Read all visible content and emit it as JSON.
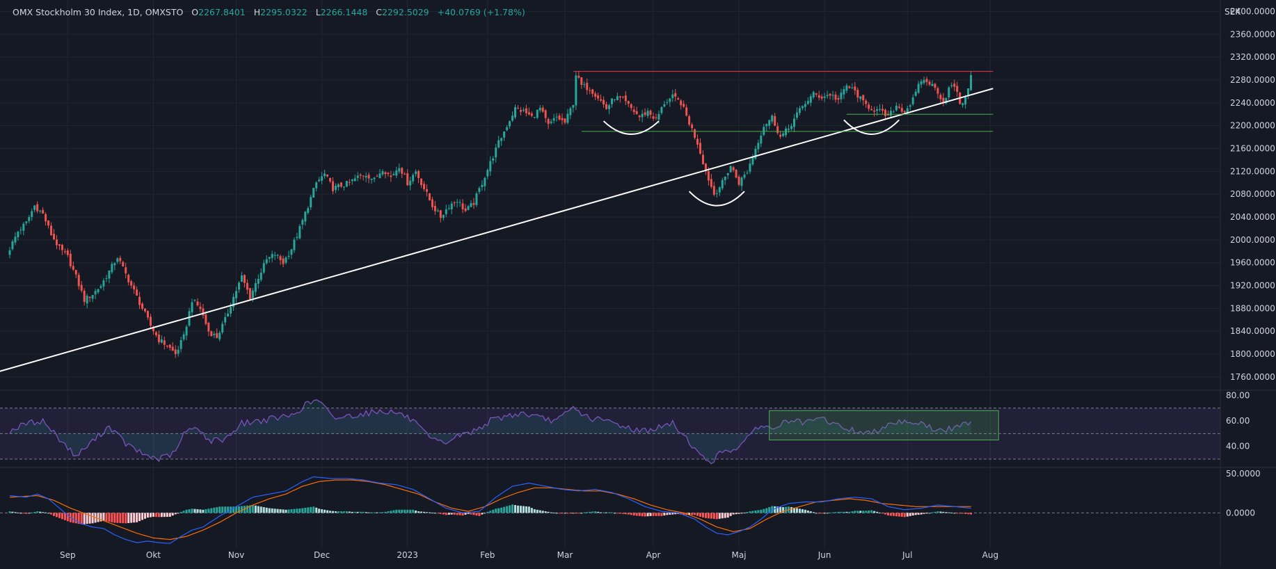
{
  "header": {
    "symbol": "OMX Stockholm 30 Index, 1D, OMXSTO",
    "open_label": "O",
    "open": "2267.8401",
    "high_label": "H",
    "high": "2295.0322",
    "low_label": "L",
    "low": "2266.1448",
    "close_label": "C",
    "close": "2292.5029",
    "change": "+40.0769 (+1.78%)",
    "currency": "SEK"
  },
  "colors": {
    "background": "#151924",
    "up_candle": "#26a69a",
    "down_candle": "#ef5350",
    "grid": "#222632",
    "trendline": "#ffffff",
    "resistance_line": "#f23645",
    "support_line": "#4caf50",
    "rsi_line": "#7e57c2",
    "macd_line": "#2962ff",
    "signal_line": "#ff6d00"
  },
  "chart_data": [
    {
      "type": "candlestick",
      "x_labels": [
        "Sep",
        "Okt",
        "Nov",
        "Dec",
        "2023",
        "Feb",
        "Mar",
        "Apr",
        "Maj",
        "Jun",
        "Jul",
        "Aug"
      ],
      "y_ticks": [
        "2400.0000",
        "2360.0000",
        "2320.0000",
        "2280.0000",
        "2240.0000",
        "2200.0000",
        "2160.0000",
        "2120.0000",
        "2080.0000",
        "2040.0000",
        "2000.0000",
        "1960.0000",
        "1920.0000",
        "1880.0000",
        "1840.0000",
        "1800.0000",
        "1760.0000"
      ],
      "ylim": [
        1738,
        2420
      ],
      "close_path": [
        [
          0,
          1985
        ],
        [
          3,
          2015
        ],
        [
          6,
          2030
        ],
        [
          9,
          2060
        ],
        [
          12,
          2045
        ],
        [
          15,
          2010
        ],
        [
          18,
          1985
        ],
        [
          21,
          1970
        ],
        [
          24,
          1935
        ],
        [
          27,
          1895
        ],
        [
          30,
          1905
        ],
        [
          33,
          1920
        ],
        [
          36,
          1945
        ],
        [
          39,
          1970
        ],
        [
          42,
          1940
        ],
        [
          45,
          1910
        ],
        [
          48,
          1880
        ],
        [
          51,
          1850
        ],
        [
          54,
          1825
        ],
        [
          57,
          1815
        ],
        [
          60,
          1800
        ],
        [
          63,
          1830
        ],
        [
          66,
          1895
        ],
        [
          69,
          1880
        ],
        [
          72,
          1840
        ],
        [
          75,
          1830
        ],
        [
          78,
          1860
        ],
        [
          81,
          1900
        ],
        [
          84,
          1935
        ],
        [
          87,
          1900
        ],
        [
          90,
          1935
        ],
        [
          93,
          1965
        ],
        [
          96,
          1975
        ],
        [
          99,
          1960
        ],
        [
          102,
          1985
        ],
        [
          105,
          2020
        ],
        [
          108,
          2060
        ],
        [
          111,
          2100
        ],
        [
          114,
          2115
        ],
        [
          117,
          2090
        ],
        [
          120,
          2095
        ],
        [
          123,
          2100
        ],
        [
          126,
          2110
        ],
        [
          129,
          2115
        ],
        [
          132,
          2105
        ],
        [
          135,
          2125
        ],
        [
          138,
          2110
        ],
        [
          141,
          2130
        ],
        [
          144,
          2100
        ],
        [
          147,
          2120
        ],
        [
          150,
          2090
        ],
        [
          153,
          2060
        ],
        [
          156,
          2040
        ],
        [
          159,
          2060
        ],
        [
          162,
          2070
        ],
        [
          165,
          2050
        ],
        [
          168,
          2065
        ],
        [
          171,
          2100
        ],
        [
          174,
          2135
        ],
        [
          177,
          2170
        ],
        [
          180,
          2200
        ],
        [
          183,
          2230
        ],
        [
          186,
          2225
        ],
        [
          189,
          2215
        ],
        [
          192,
          2230
        ],
        [
          195,
          2200
        ],
        [
          198,
          2215
        ],
        [
          201,
          2205
        ],
        [
          204,
          2240
        ],
        [
          205,
          2290
        ],
        [
          207,
          2270
        ],
        [
          210,
          2265
        ],
        [
          213,
          2250
        ],
        [
          216,
          2230
        ],
        [
          219,
          2250
        ],
        [
          222,
          2245
        ],
        [
          225,
          2230
        ],
        [
          228,
          2215
        ],
        [
          231,
          2225
        ],
        [
          234,
          2210
        ],
        [
          237,
          2240
        ],
        [
          240,
          2250
        ],
        [
          243,
          2240
        ],
        [
          246,
          2205
        ],
        [
          249,
          2170
        ],
        [
          252,
          2120
        ],
        [
          255,
          2080
        ],
        [
          258,
          2100
        ],
        [
          261,
          2130
        ],
        [
          264,
          2100
        ],
        [
          267,
          2120
        ],
        [
          270,
          2160
        ],
        [
          273,
          2200
        ],
        [
          276,
          2215
        ],
        [
          279,
          2180
        ],
        [
          282,
          2195
        ],
        [
          285,
          2220
        ],
        [
          288,
          2240
        ],
        [
          291,
          2255
        ],
        [
          294,
          2250
        ],
        [
          297,
          2255
        ],
        [
          300,
          2245
        ],
        [
          303,
          2270
        ],
        [
          306,
          2260
        ],
        [
          309,
          2240
        ],
        [
          312,
          2230
        ],
        [
          315,
          2225
        ],
        [
          318,
          2215
        ],
        [
          321,
          2235
        ],
        [
          324,
          2225
        ],
        [
          327,
          2245
        ],
        [
          330,
          2280
        ],
        [
          333,
          2275
        ],
        [
          336,
          2260
        ],
        [
          338,
          2240
        ],
        [
          340,
          2265
        ],
        [
          342,
          2270
        ],
        [
          344,
          2240
        ],
        [
          346,
          2245
        ],
        [
          348,
          2292
        ]
      ],
      "trendline": {
        "start": [
          -5,
          1768
        ],
        "end": [
          356,
          2265
        ]
      },
      "resistance": {
        "value": 2295,
        "from": 204,
        "to": 356
      },
      "support": [
        {
          "value": 2220,
          "from": 303,
          "to": 356
        },
        {
          "value": 2190,
          "from": 207,
          "to": 356
        }
      ],
      "arcs": [
        {
          "center": 225,
          "top": 2208,
          "bottom": 2185,
          "half_width": 10
        },
        {
          "center": 256,
          "top": 2085,
          "bottom": 2060,
          "half_width": 10
        },
        {
          "center": 312,
          "top": 2210,
          "bottom": 2185,
          "half_width": 10
        }
      ]
    },
    {
      "type": "line",
      "name": "",
      "y_ticks": [
        "80.00",
        "60.00",
        "40.00"
      ],
      "ylim": [
        24,
        84
      ],
      "levels": [
        70,
        50,
        30
      ],
      "values_path": [
        [
          0,
          52
        ],
        [
          6,
          58
        ],
        [
          12,
          60
        ],
        [
          18,
          46
        ],
        [
          24,
          32
        ],
        [
          30,
          44
        ],
        [
          36,
          56
        ],
        [
          42,
          42
        ],
        [
          48,
          34
        ],
        [
          54,
          30
        ],
        [
          60,
          35
        ],
        [
          63,
          50
        ],
        [
          68,
          56
        ],
        [
          72,
          44
        ],
        [
          78,
          46
        ],
        [
          84,
          58
        ],
        [
          90,
          60
        ],
        [
          96,
          62
        ],
        [
          102,
          64
        ],
        [
          108,
          74
        ],
        [
          112,
          76
        ],
        [
          117,
          62
        ],
        [
          123,
          64
        ],
        [
          129,
          66
        ],
        [
          135,
          68
        ],
        [
          141,
          66
        ],
        [
          146,
          60
        ],
        [
          152,
          46
        ],
        [
          157,
          42
        ],
        [
          162,
          48
        ],
        [
          168,
          52
        ],
        [
          174,
          60
        ],
        [
          180,
          64
        ],
        [
          186,
          66
        ],
        [
          192,
          62
        ],
        [
          198,
          60
        ],
        [
          204,
          70
        ],
        [
          210,
          62
        ],
        [
          216,
          60
        ],
        [
          222,
          56
        ],
        [
          228,
          52
        ],
        [
          234,
          54
        ],
        [
          240,
          58
        ],
        [
          246,
          44
        ],
        [
          250,
          32
        ],
        [
          254,
          28
        ],
        [
          258,
          36
        ],
        [
          262,
          38
        ],
        [
          266,
          42
        ],
        [
          270,
          56
        ],
        [
          276,
          54
        ],
        [
          282,
          60
        ],
        [
          288,
          58
        ],
        [
          294,
          62
        ],
        [
          300,
          56
        ],
        [
          306,
          52
        ],
        [
          312,
          50
        ],
        [
          318,
          58
        ],
        [
          324,
          60
        ],
        [
          330,
          58
        ],
        [
          336,
          52
        ],
        [
          342,
          54
        ],
        [
          348,
          60
        ]
      ],
      "highlight_box": {
        "from": 275,
        "to": 358,
        "top": 68,
        "bottom": 45
      }
    },
    {
      "type": "bar",
      "y_ticks": [
        "50.0000",
        "0.0000"
      ],
      "ylim": [
        -45,
        58
      ],
      "macd_path": [
        [
          0,
          22
        ],
        [
          6,
          20
        ],
        [
          10,
          24
        ],
        [
          14,
          18
        ],
        [
          18,
          6
        ],
        [
          22,
          -6
        ],
        [
          26,
          -14
        ],
        [
          30,
          -18
        ],
        [
          34,
          -20
        ],
        [
          38,
          -28
        ],
        [
          42,
          -34
        ],
        [
          46,
          -38
        ],
        [
          50,
          -36
        ],
        [
          54,
          -38
        ],
        [
          58,
          -39
        ],
        [
          62,
          -30
        ],
        [
          66,
          -22
        ],
        [
          70,
          -18
        ],
        [
          76,
          -4
        ],
        [
          82,
          8
        ],
        [
          88,
          20
        ],
        [
          94,
          24
        ],
        [
          100,
          28
        ],
        [
          106,
          40
        ],
        [
          110,
          46
        ],
        [
          116,
          44
        ],
        [
          122,
          44
        ],
        [
          128,
          42
        ],
        [
          134,
          38
        ],
        [
          140,
          36
        ],
        [
          146,
          30
        ],
        [
          152,
          18
        ],
        [
          158,
          6
        ],
        [
          164,
          0
        ],
        [
          170,
          2
        ],
        [
          176,
          20
        ],
        [
          182,
          34
        ],
        [
          188,
          38
        ],
        [
          194,
          34
        ],
        [
          200,
          30
        ],
        [
          206,
          28
        ],
        [
          212,
          30
        ],
        [
          218,
          26
        ],
        [
          224,
          18
        ],
        [
          230,
          8
        ],
        [
          236,
          2
        ],
        [
          242,
          0
        ],
        [
          248,
          -8
        ],
        [
          252,
          -18
        ],
        [
          256,
          -26
        ],
        [
          260,
          -28
        ],
        [
          264,
          -24
        ],
        [
          268,
          -18
        ],
        [
          272,
          -8
        ],
        [
          276,
          4
        ],
        [
          282,
          12
        ],
        [
          288,
          14
        ],
        [
          294,
          14
        ],
        [
          300,
          18
        ],
        [
          306,
          20
        ],
        [
          312,
          18
        ],
        [
          318,
          8
        ],
        [
          324,
          4
        ],
        [
          330,
          6
        ],
        [
          336,
          10
        ],
        [
          342,
          8
        ],
        [
          348,
          6
        ]
      ],
      "signal_path": [
        [
          0,
          20
        ],
        [
          10,
          22
        ],
        [
          16,
          16
        ],
        [
          22,
          6
        ],
        [
          28,
          -2
        ],
        [
          34,
          -10
        ],
        [
          40,
          -18
        ],
        [
          46,
          -26
        ],
        [
          52,
          -32
        ],
        [
          58,
          -34
        ],
        [
          64,
          -30
        ],
        [
          70,
          -22
        ],
        [
          76,
          -12
        ],
        [
          82,
          0
        ],
        [
          88,
          10
        ],
        [
          94,
          18
        ],
        [
          100,
          24
        ],
        [
          106,
          34
        ],
        [
          112,
          40
        ],
        [
          118,
          42
        ],
        [
          124,
          42
        ],
        [
          130,
          40
        ],
        [
          136,
          36
        ],
        [
          142,
          30
        ],
        [
          148,
          24
        ],
        [
          154,
          14
        ],
        [
          160,
          6
        ],
        [
          166,
          2
        ],
        [
          172,
          8
        ],
        [
          178,
          18
        ],
        [
          184,
          26
        ],
        [
          190,
          32
        ],
        [
          196,
          32
        ],
        [
          202,
          30
        ],
        [
          208,
          28
        ],
        [
          214,
          28
        ],
        [
          220,
          24
        ],
        [
          226,
          18
        ],
        [
          232,
          10
        ],
        [
          238,
          4
        ],
        [
          244,
          0
        ],
        [
          250,
          -8
        ],
        [
          256,
          -18
        ],
        [
          262,
          -24
        ],
        [
          268,
          -20
        ],
        [
          274,
          -8
        ],
        [
          280,
          2
        ],
        [
          286,
          8
        ],
        [
          292,
          14
        ],
        [
          298,
          16
        ],
        [
          304,
          18
        ],
        [
          310,
          16
        ],
        [
          316,
          12
        ],
        [
          322,
          10
        ],
        [
          328,
          8
        ],
        [
          334,
          8
        ],
        [
          340,
          8
        ],
        [
          348,
          8
        ]
      ]
    }
  ]
}
